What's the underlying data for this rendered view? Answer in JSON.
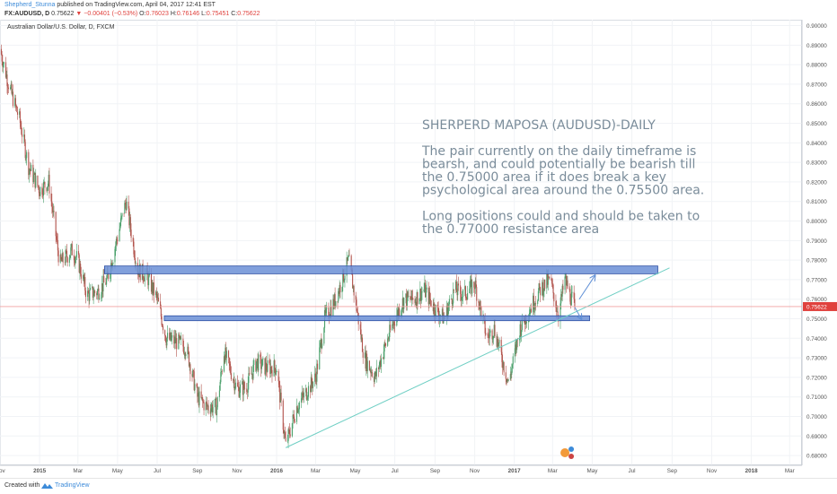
{
  "header": {
    "author": "Shepherd_Stunna",
    "published": "published on TradingView.com, April 04, 2017 12:41 EST",
    "symbol": "FX:AUDUSD, D",
    "last": "0.75622",
    "change": "▼ −0.00401 (−0.53%)",
    "ohlc": [
      {
        "label": "O:",
        "value": "0.76023"
      },
      {
        "label": "H:",
        "value": "0.76146"
      },
      {
        "label": "L:",
        "value": "0.75451"
      },
      {
        "label": "C:",
        "value": "0.75622"
      }
    ]
  },
  "footer": {
    "created_with": "Created with",
    "brand": "TradingView"
  },
  "colors": {
    "up": "#4aa06b",
    "down": "#b3554e",
    "band": "#6b8fd6",
    "band_stroke": "#2c4fa3",
    "trendline": "#6fcfc4",
    "arrow": "#5f8fd6",
    "price_line": "#f0a0a0",
    "price_tag": "#e0413d",
    "annotation": "#7a8c9a",
    "grid": "#f1f3f6",
    "axis_text": "#555555"
  },
  "chart_data": {
    "type": "candlestick",
    "title": "Australian Dollar/U.S. Dollar, D, FXCM",
    "x_start": "2014-11-01",
    "x_end": "2018-03-20",
    "ylim": [
      0.675,
      0.903
    ],
    "y_ticks": [
      "0.68000",
      "0.69000",
      "0.70000",
      "0.71000",
      "0.72000",
      "0.73000",
      "0.74000",
      "0.75000",
      "0.76000",
      "0.77000",
      "0.78000",
      "0.79000",
      "0.80000",
      "0.81000",
      "0.82000",
      "0.83000",
      "0.84000",
      "0.85000",
      "0.86000",
      "0.87000",
      "0.88000",
      "0.89000",
      "0.90000"
    ],
    "x_ticks": [
      {
        "label": "Nov",
        "date": "2014-11-01",
        "bold": false
      },
      {
        "label": "2015",
        "date": "2015-01-01",
        "bold": true
      },
      {
        "label": "Mar",
        "date": "2015-03-01",
        "bold": false
      },
      {
        "label": "May",
        "date": "2015-05-01",
        "bold": false
      },
      {
        "label": "Jul",
        "date": "2015-07-01",
        "bold": false
      },
      {
        "label": "Sep",
        "date": "2015-09-01",
        "bold": false
      },
      {
        "label": "Nov",
        "date": "2015-11-01",
        "bold": false
      },
      {
        "label": "2016",
        "date": "2016-01-01",
        "bold": true
      },
      {
        "label": "Mar",
        "date": "2016-03-01",
        "bold": false
      },
      {
        "label": "May",
        "date": "2016-05-01",
        "bold": false
      },
      {
        "label": "Jul",
        "date": "2016-07-01",
        "bold": false
      },
      {
        "label": "Sep",
        "date": "2016-09-01",
        "bold": false
      },
      {
        "label": "Nov",
        "date": "2016-11-01",
        "bold": false
      },
      {
        "label": "2017",
        "date": "2017-01-01",
        "bold": true
      },
      {
        "label": "Mar",
        "date": "2017-03-01",
        "bold": false
      },
      {
        "label": "May",
        "date": "2017-05-01",
        "bold": false
      },
      {
        "label": "Jul",
        "date": "2017-07-01",
        "bold": false
      },
      {
        "label": "Sep",
        "date": "2017-09-01",
        "bold": false
      },
      {
        "label": "Nov",
        "date": "2017-11-01",
        "bold": false
      },
      {
        "label": "2018",
        "date": "2018-01-01",
        "bold": true
      },
      {
        "label": "Mar",
        "date": "2018-03-01",
        "bold": false
      }
    ],
    "last_price": "0.75622",
    "last_value": 0.75622,
    "price_anchors": [
      {
        "date": "2014-11-01",
        "close": 0.888
      },
      {
        "date": "2014-11-15",
        "close": 0.869
      },
      {
        "date": "2014-12-01",
        "close": 0.852
      },
      {
        "date": "2014-12-15",
        "close": 0.828
      },
      {
        "date": "2015-01-01",
        "close": 0.816
      },
      {
        "date": "2015-01-15",
        "close": 0.82
      },
      {
        "date": "2015-02-01",
        "close": 0.778
      },
      {
        "date": "2015-02-20",
        "close": 0.785
      },
      {
        "date": "2015-03-01",
        "close": 0.78
      },
      {
        "date": "2015-03-15",
        "close": 0.762
      },
      {
        "date": "2015-04-01",
        "close": 0.764
      },
      {
        "date": "2015-04-15",
        "close": 0.77
      },
      {
        "date": "2015-05-01",
        "close": 0.792
      },
      {
        "date": "2015-05-14",
        "close": 0.81
      },
      {
        "date": "2015-06-01",
        "close": 0.775
      },
      {
        "date": "2015-06-15",
        "close": 0.772
      },
      {
        "date": "2015-07-01",
        "close": 0.76
      },
      {
        "date": "2015-07-15",
        "close": 0.74
      },
      {
        "date": "2015-08-01",
        "close": 0.738
      },
      {
        "date": "2015-08-15",
        "close": 0.735
      },
      {
        "date": "2015-09-01",
        "close": 0.71
      },
      {
        "date": "2015-09-15",
        "close": 0.705
      },
      {
        "date": "2015-10-01",
        "close": 0.705
      },
      {
        "date": "2015-10-12",
        "close": 0.733
      },
      {
        "date": "2015-11-01",
        "close": 0.714
      },
      {
        "date": "2015-11-15",
        "close": 0.715
      },
      {
        "date": "2015-12-01",
        "close": 0.728
      },
      {
        "date": "2015-12-15",
        "close": 0.725
      },
      {
        "date": "2016-01-01",
        "close": 0.725
      },
      {
        "date": "2016-01-15",
        "close": 0.685
      },
      {
        "date": "2016-02-01",
        "close": 0.705
      },
      {
        "date": "2016-02-15",
        "close": 0.712
      },
      {
        "date": "2016-03-01",
        "close": 0.72
      },
      {
        "date": "2016-03-15",
        "close": 0.75
      },
      {
        "date": "2016-04-01",
        "close": 0.76
      },
      {
        "date": "2016-04-21",
        "close": 0.78
      },
      {
        "date": "2016-05-01",
        "close": 0.76
      },
      {
        "date": "2016-05-15",
        "close": 0.73
      },
      {
        "date": "2016-06-01",
        "close": 0.72
      },
      {
        "date": "2016-06-15",
        "close": 0.735
      },
      {
        "date": "2016-07-01",
        "close": 0.75
      },
      {
        "date": "2016-07-15",
        "close": 0.76
      },
      {
        "date": "2016-08-01",
        "close": 0.76
      },
      {
        "date": "2016-08-15",
        "close": 0.765
      },
      {
        "date": "2016-09-01",
        "close": 0.755
      },
      {
        "date": "2016-09-15",
        "close": 0.75
      },
      {
        "date": "2016-10-01",
        "close": 0.765
      },
      {
        "date": "2016-10-15",
        "close": 0.762
      },
      {
        "date": "2016-11-01",
        "close": 0.768
      },
      {
        "date": "2016-11-10",
        "close": 0.755
      },
      {
        "date": "2016-11-20",
        "close": 0.74
      },
      {
        "date": "2016-12-01",
        "close": 0.745
      },
      {
        "date": "2016-12-23",
        "close": 0.717
      },
      {
        "date": "2017-01-10",
        "close": 0.745
      },
      {
        "date": "2017-01-25",
        "close": 0.755
      },
      {
        "date": "2017-02-10",
        "close": 0.765
      },
      {
        "date": "2017-02-25",
        "close": 0.77
      },
      {
        "date": "2017-03-10",
        "close": 0.752
      },
      {
        "date": "2017-03-20",
        "close": 0.77
      },
      {
        "date": "2017-03-28",
        "close": 0.762
      },
      {
        "date": "2017-04-04",
        "close": 0.7562
      }
    ],
    "drawings": {
      "resistance_band": {
        "date_start": "2015-04-11",
        "date_end": "2017-08-10",
        "top": 0.777,
        "bottom": 0.773
      },
      "support_band": {
        "date_start": "2015-07-12",
        "date_end": "2017-04-27",
        "top": 0.7515,
        "bottom": 0.749
      },
      "trendline": {
        "start": {
          "date": "2016-01-15",
          "value": 0.684
        },
        "end": {
          "date": "2017-08-28",
          "value": 0.776
        }
      },
      "arrow_up": {
        "start": {
          "date": "2017-04-11",
          "value": 0.76
        },
        "end": {
          "date": "2017-05-05",
          "value": 0.772
        }
      },
      "arrow_down": {
        "start": {
          "date": "2017-04-04",
          "value": 0.756
        },
        "end": {
          "date": "2017-04-14",
          "value": 0.75
        }
      }
    },
    "annotation": {
      "date": "2016-08-12",
      "value": 0.847,
      "lines": [
        "SHERPERD MAPOSA (AUDUSD)-DAILY",
        "",
        "The pair currently on the daily timeframe is",
        "bearsh, and could potentially be bearish till",
        "the 0.75000 area if it does break a key",
        "psychological area around the 0.75500 area.",
        "",
        "Long positions could and should be taken to",
        "the 0.77000 resistance area"
      ]
    }
  }
}
